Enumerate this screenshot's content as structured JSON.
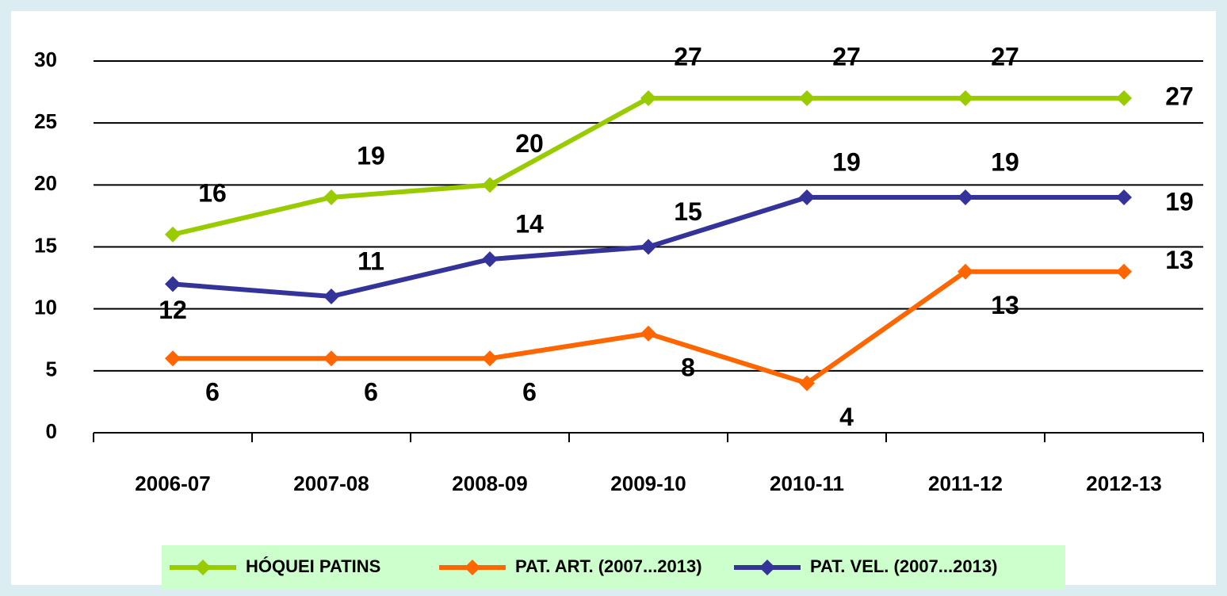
{
  "chart_data": {
    "type": "line",
    "categories": [
      "2006-07",
      "2007-08",
      "2008-09",
      "2009-10",
      "2010-11",
      "2011-12",
      "2012-13"
    ],
    "series": [
      {
        "name": "HÓQUEI PATINS",
        "color": "#99cc00",
        "values": [
          16,
          19,
          20,
          27,
          27,
          27,
          27
        ]
      },
      {
        "name": "PAT. ART. (2007...2013)",
        "color": "#ff6600",
        "values": [
          6,
          6,
          6,
          8,
          4,
          13,
          13
        ]
      },
      {
        "name": "PAT. VEL. (2007...2013)",
        "color": "#333399",
        "values": [
          12,
          11,
          14,
          15,
          19,
          19,
          19
        ]
      }
    ],
    "ylim": [
      0,
      30
    ],
    "yticks": [
      0,
      5,
      10,
      15,
      20,
      25,
      30
    ],
    "grid": true,
    "legend": "bottom"
  }
}
